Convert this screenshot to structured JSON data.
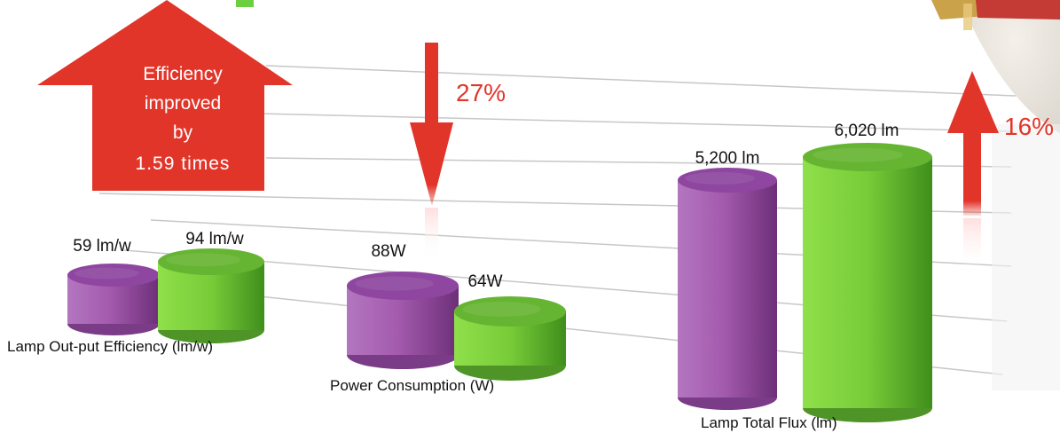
{
  "chart_data": {
    "type": "bar",
    "groups": [
      {
        "label": "Lamp Out-put Efficiency (lm/w)",
        "values": [
          {
            "label": "59 lm/w",
            "value": 59
          },
          {
            "label": "94 lm/w",
            "value": 94
          }
        ]
      },
      {
        "label": "Power Consumption (W)",
        "values": [
          {
            "label": "88W",
            "value": 88
          },
          {
            "label": "64W",
            "value": 64
          }
        ]
      },
      {
        "label": "Lamp Total Flux (lm)",
        "values": [
          {
            "label": "5,200 lm",
            "value": 5200
          },
          {
            "label": "6,020 lm",
            "value": 6020
          }
        ]
      }
    ],
    "series_colors": [
      "#a35aad",
      "#7fd43f"
    ],
    "annotations": {
      "efficiency": [
        "Efficiency",
        "improved",
        "by",
        "1.59 times"
      ],
      "power_change": "27%",
      "flux_change": "16%"
    },
    "grid": true
  },
  "colors": {
    "arrow": "#e2352a",
    "purple": "#a35aad",
    "green": "#7fd43f",
    "text": "#111111"
  }
}
